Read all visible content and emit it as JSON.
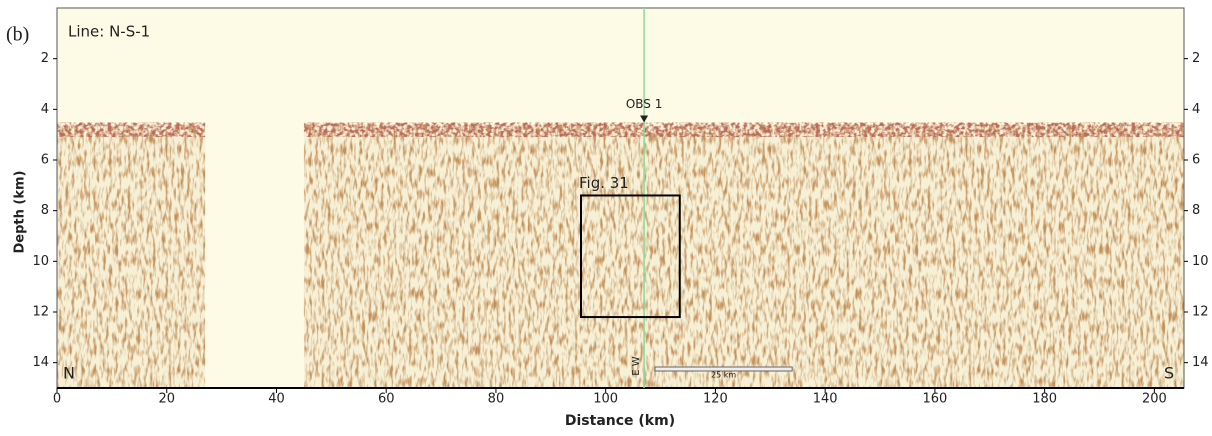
{
  "chart_data": {
    "type": "seismic-section",
    "panel_label": "(b)",
    "title": "Line: N-S-1",
    "x_label": "Distance (km)",
    "y_label": "Depth (km)",
    "xlim": [
      0,
      205.4
    ],
    "ylim": [
      15,
      0
    ],
    "xticks": [
      0,
      20,
      40,
      60,
      80,
      100,
      120,
      140,
      160,
      180,
      200
    ],
    "yticks": [
      2,
      4,
      6,
      8,
      10,
      12,
      14
    ],
    "data_gap": [
      27,
      45
    ],
    "seafloor_depth": 4.6,
    "obs": {
      "label": "OBS 1",
      "x": 107,
      "color": "#8fd89a"
    },
    "box": {
      "label": "Fig. 31",
      "x": [
        95.5,
        113.5
      ],
      "y": [
        7.4,
        12.2
      ]
    },
    "ends": [
      "N",
      "S"
    ],
    "crossing_label": "E W",
    "scale_bar": {
      "label": "25 km",
      "length": 25
    }
  }
}
